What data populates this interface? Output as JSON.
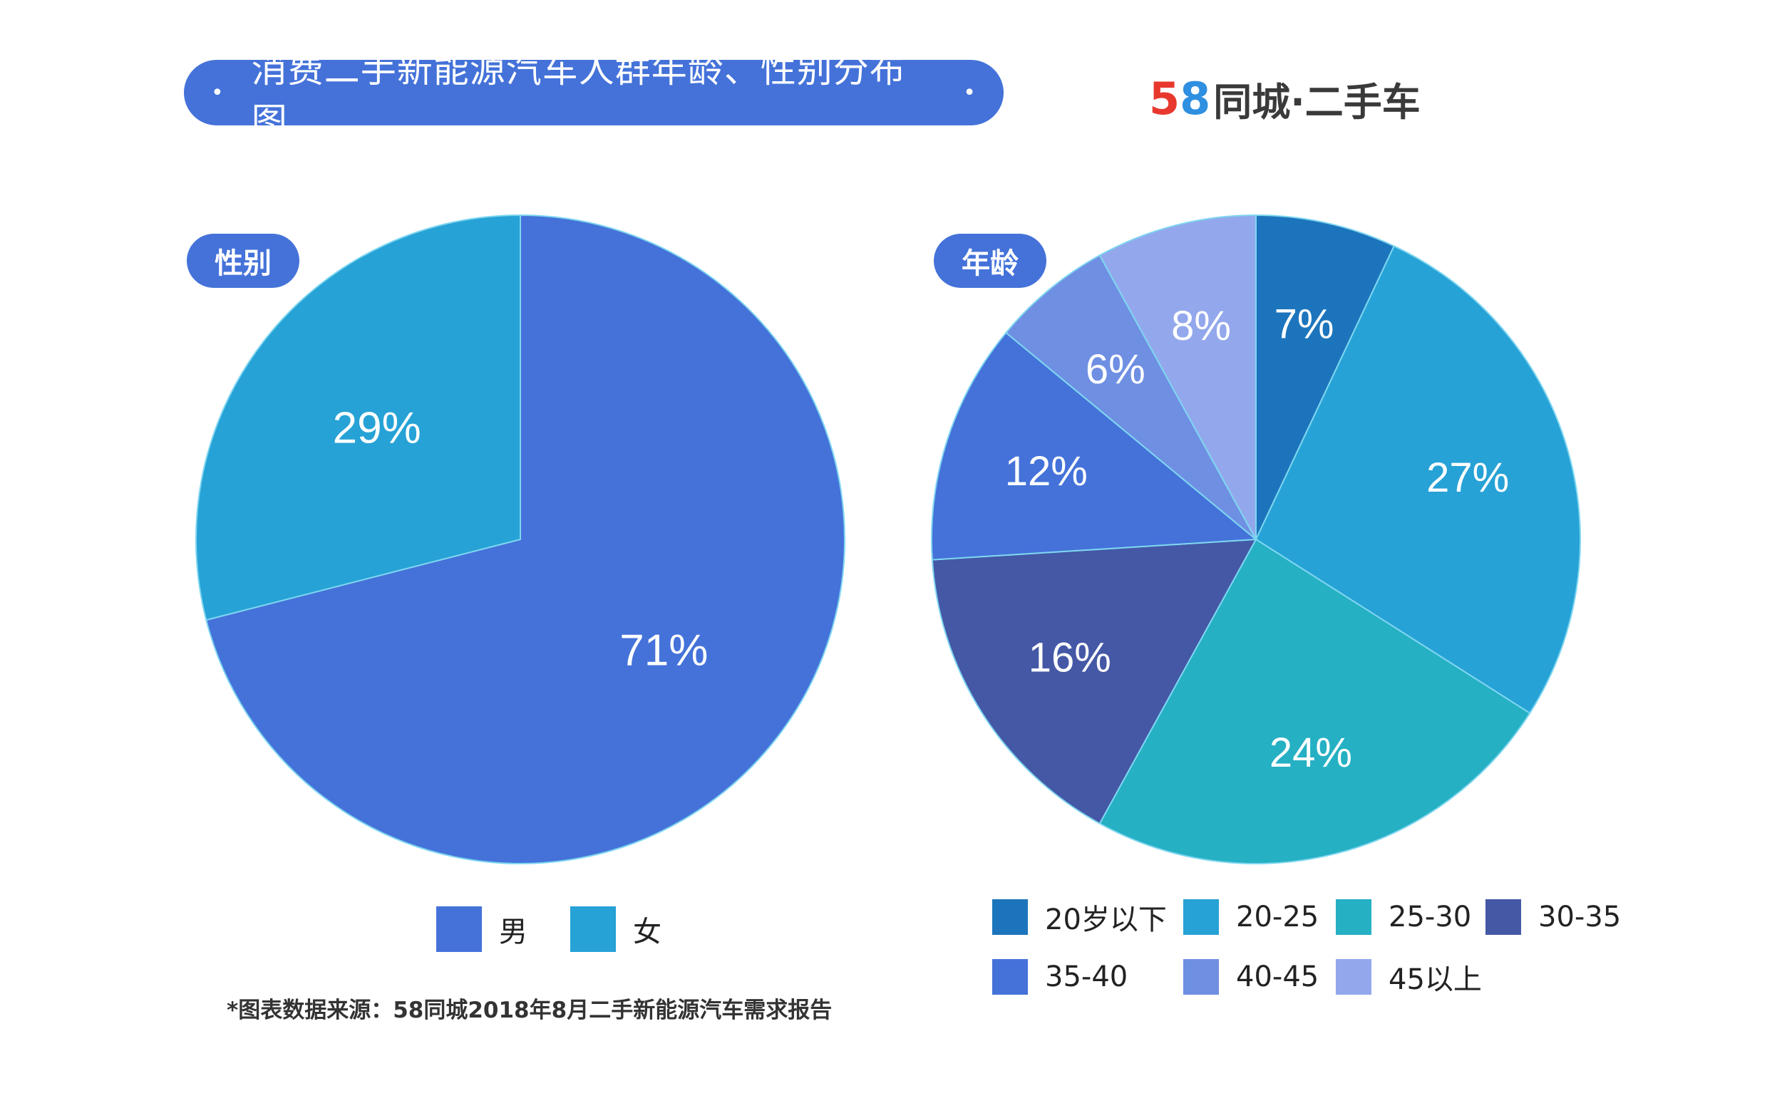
{
  "header": {
    "title": "消费二手新能源汽车人群年龄、性别分布图",
    "title_dot": "•",
    "brand_digit_5": "5",
    "brand_digit_8": "8",
    "brand_text": "同城·二手车",
    "accent_color": "#4472d9"
  },
  "footnote": "*图表数据来源：58同城2018年8月二手新能源汽车需求报告",
  "chart_data": [
    {
      "type": "pie",
      "title": "性别",
      "legend_position": "bottom",
      "slices": [
        {
          "name": "男",
          "value": 71,
          "label": "71%",
          "color": "#4472d9"
        },
        {
          "name": "女",
          "value": 29,
          "label": "29%",
          "color": "#26a2d6"
        }
      ]
    },
    {
      "type": "pie",
      "title": "年龄",
      "legend_position": "bottom",
      "slices": [
        {
          "name": "20岁以下",
          "value": 7,
          "label": "7%",
          "color": "#1c75bc"
        },
        {
          "name": "20-25",
          "value": 27,
          "label": "27%",
          "color": "#26a2d6"
        },
        {
          "name": "25-30",
          "value": 24,
          "label": "24%",
          "color": "#25b0c3"
        },
        {
          "name": "30-35",
          "value": 16,
          "label": "16%",
          "color": "#4458a6"
        },
        {
          "name": "35-40",
          "value": 12,
          "label": "12%",
          "color": "#4472d9"
        },
        {
          "name": "40-45",
          "value": 6,
          "label": "6%",
          "color": "#6f8fe3"
        },
        {
          "name": "45以上",
          "value": 8,
          "label": "8%",
          "color": "#93a8ec"
        }
      ]
    }
  ]
}
